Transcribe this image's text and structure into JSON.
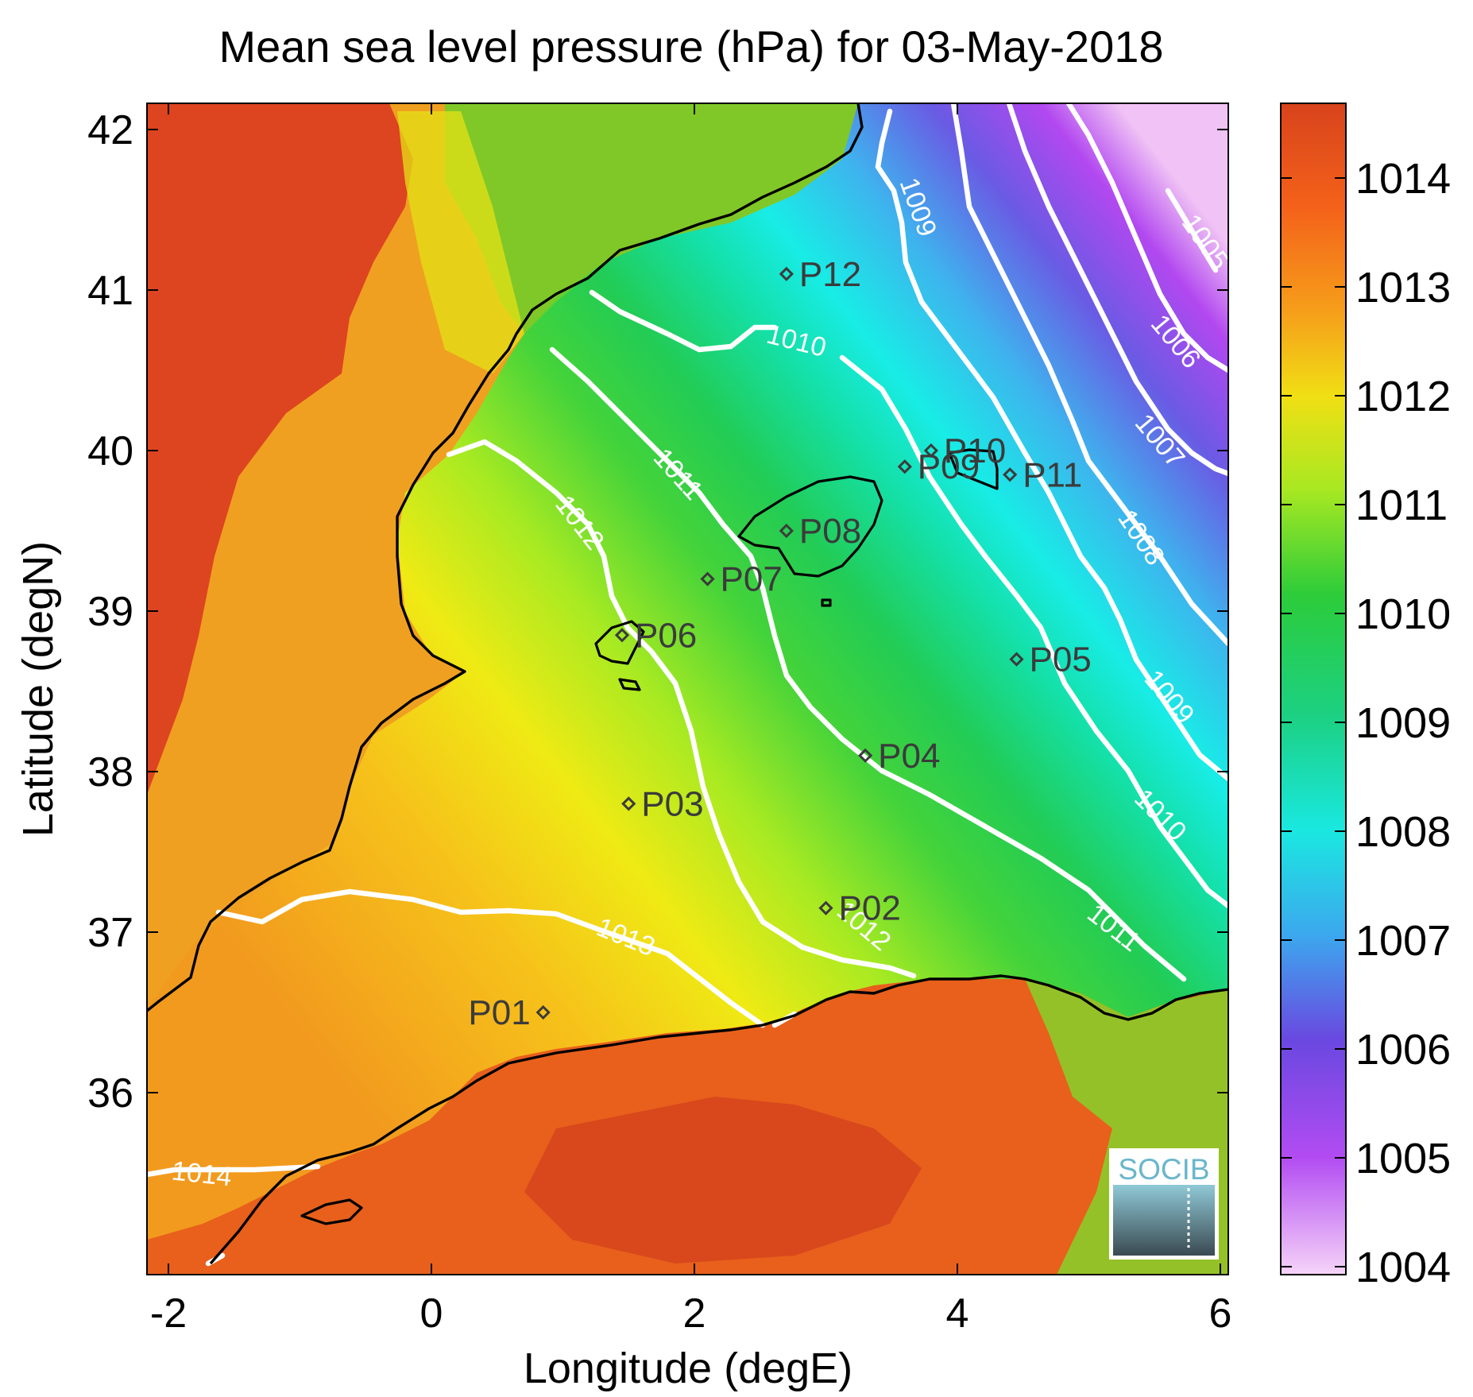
{
  "map": {
    "title": "Mean sea level pressure (hPa) for 03-May-2018",
    "xlabel": "Longitude (degE)",
    "ylabel": "Latitude (degN)",
    "xticks": [
      "-2",
      "0",
      "2",
      "4",
      "6"
    ],
    "yticks": [
      "42",
      "41",
      "40",
      "39",
      "38",
      "37",
      "36"
    ],
    "logo": "SOCIB"
  },
  "colorbar": {
    "ticks": [
      "1014",
      "1013",
      "1012",
      "1011",
      "1010",
      "1009",
      "1008",
      "1007",
      "1006",
      "1005",
      "1004"
    ]
  },
  "contour_labels": [
    "1014",
    "1013",
    "1012",
    "1011",
    "1010",
    "1009",
    "1008",
    "1007",
    "1006",
    "1005",
    "1009",
    "1010",
    "1011",
    "1012"
  ],
  "points": [
    {
      "id": "P01",
      "lon": 0.85,
      "lat": 36.5
    },
    {
      "id": "P02",
      "lon": 3.0,
      "lat": 37.15
    },
    {
      "id": "P03",
      "lon": 1.5,
      "lat": 37.8
    },
    {
      "id": "P04",
      "lon": 3.3,
      "lat": 38.1
    },
    {
      "id": "P05",
      "lon": 4.45,
      "lat": 38.7
    },
    {
      "id": "P06",
      "lon": 1.45,
      "lat": 38.85
    },
    {
      "id": "P07",
      "lon": 2.1,
      "lat": 39.2
    },
    {
      "id": "P08",
      "lon": 2.7,
      "lat": 39.5
    },
    {
      "id": "P09",
      "lon": 3.6,
      "lat": 39.9
    },
    {
      "id": "P10",
      "lon": 3.8,
      "lat": 40.0
    },
    {
      "id": "P11",
      "lon": 4.4,
      "lat": 39.85
    },
    {
      "id": "P12",
      "lon": 2.7,
      "lat": 41.1
    }
  ]
}
